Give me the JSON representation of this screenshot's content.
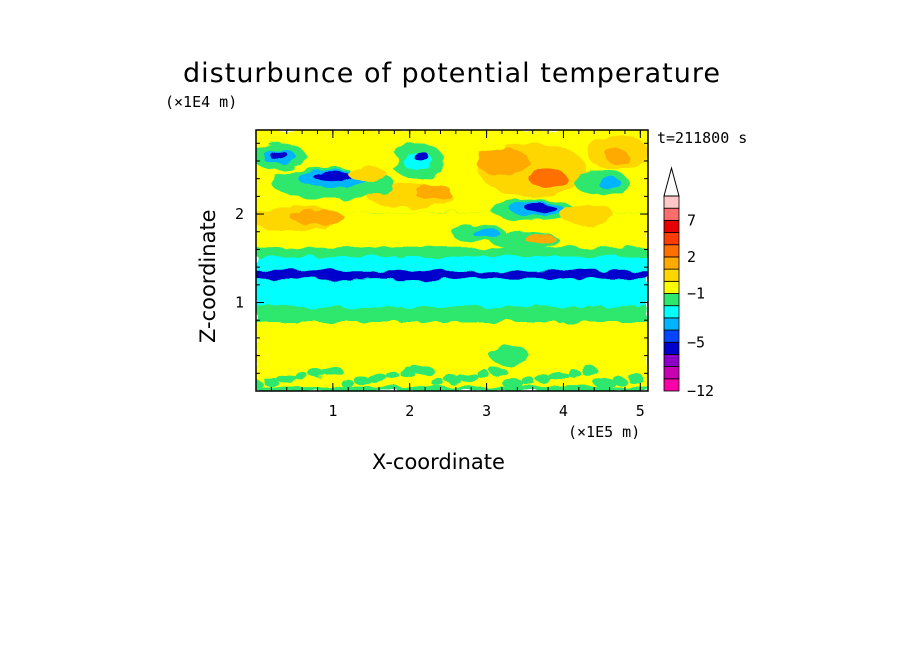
{
  "chart_data": {
    "type": "heatmap",
    "title": "disturbunce of potential temperature",
    "xlabel": "X-coordinate",
    "ylabel": "Z-coordinate",
    "x_unit": "(×1E5 m)",
    "y_unit": "(×1E4 m)",
    "time_label": "t=211800 s",
    "xlim": [
      0,
      5.1
    ],
    "ylim": [
      0,
      2.95
    ],
    "xticks": [
      "1",
      "2",
      "3",
      "4",
      "5"
    ],
    "yticks": [
      "1",
      "2"
    ],
    "colorbar": {
      "tick_labels": [
        "7",
        "2",
        "−1",
        "−5",
        "−12"
      ],
      "levels": [
        -12,
        -10,
        -8,
        -6,
        -5,
        -4,
        -3,
        -2,
        -1,
        0,
        1,
        2,
        3,
        5,
        7,
        9,
        12
      ],
      "colors": [
        "#ff00a8",
        "#c800b4",
        "#8c00c8",
        "#0000cd",
        "#0046ff",
        "#00b4ff",
        "#00ffff",
        "#2ee86e",
        "#ffff00",
        "#ffd700",
        "#ffaa00",
        "#ff7000",
        "#ff3c00",
        "#e60000",
        "#ff6e6e",
        "#ffc8c8"
      ],
      "extend": "max"
    },
    "bands": [
      {
        "y": [
          0.0,
          0.3
        ],
        "level": "yellow+green",
        "note": "mixed yellow and green near ground"
      },
      {
        "y": [
          0.3,
          0.8
        ],
        "level": "yellow"
      },
      {
        "y": [
          0.8,
          0.95
        ],
        "level": "green"
      },
      {
        "y": [
          0.95,
          1.25
        ],
        "level": "cyan"
      },
      {
        "y": [
          1.25,
          1.35
        ],
        "level": "blue"
      },
      {
        "y": [
          1.35,
          1.6
        ],
        "level": "cyan+green"
      },
      {
        "y": [
          1.6,
          2.0
        ],
        "level": "yellow+orange"
      },
      {
        "y": [
          2.0,
          2.95
        ],
        "level": "mixed"
      }
    ]
  }
}
